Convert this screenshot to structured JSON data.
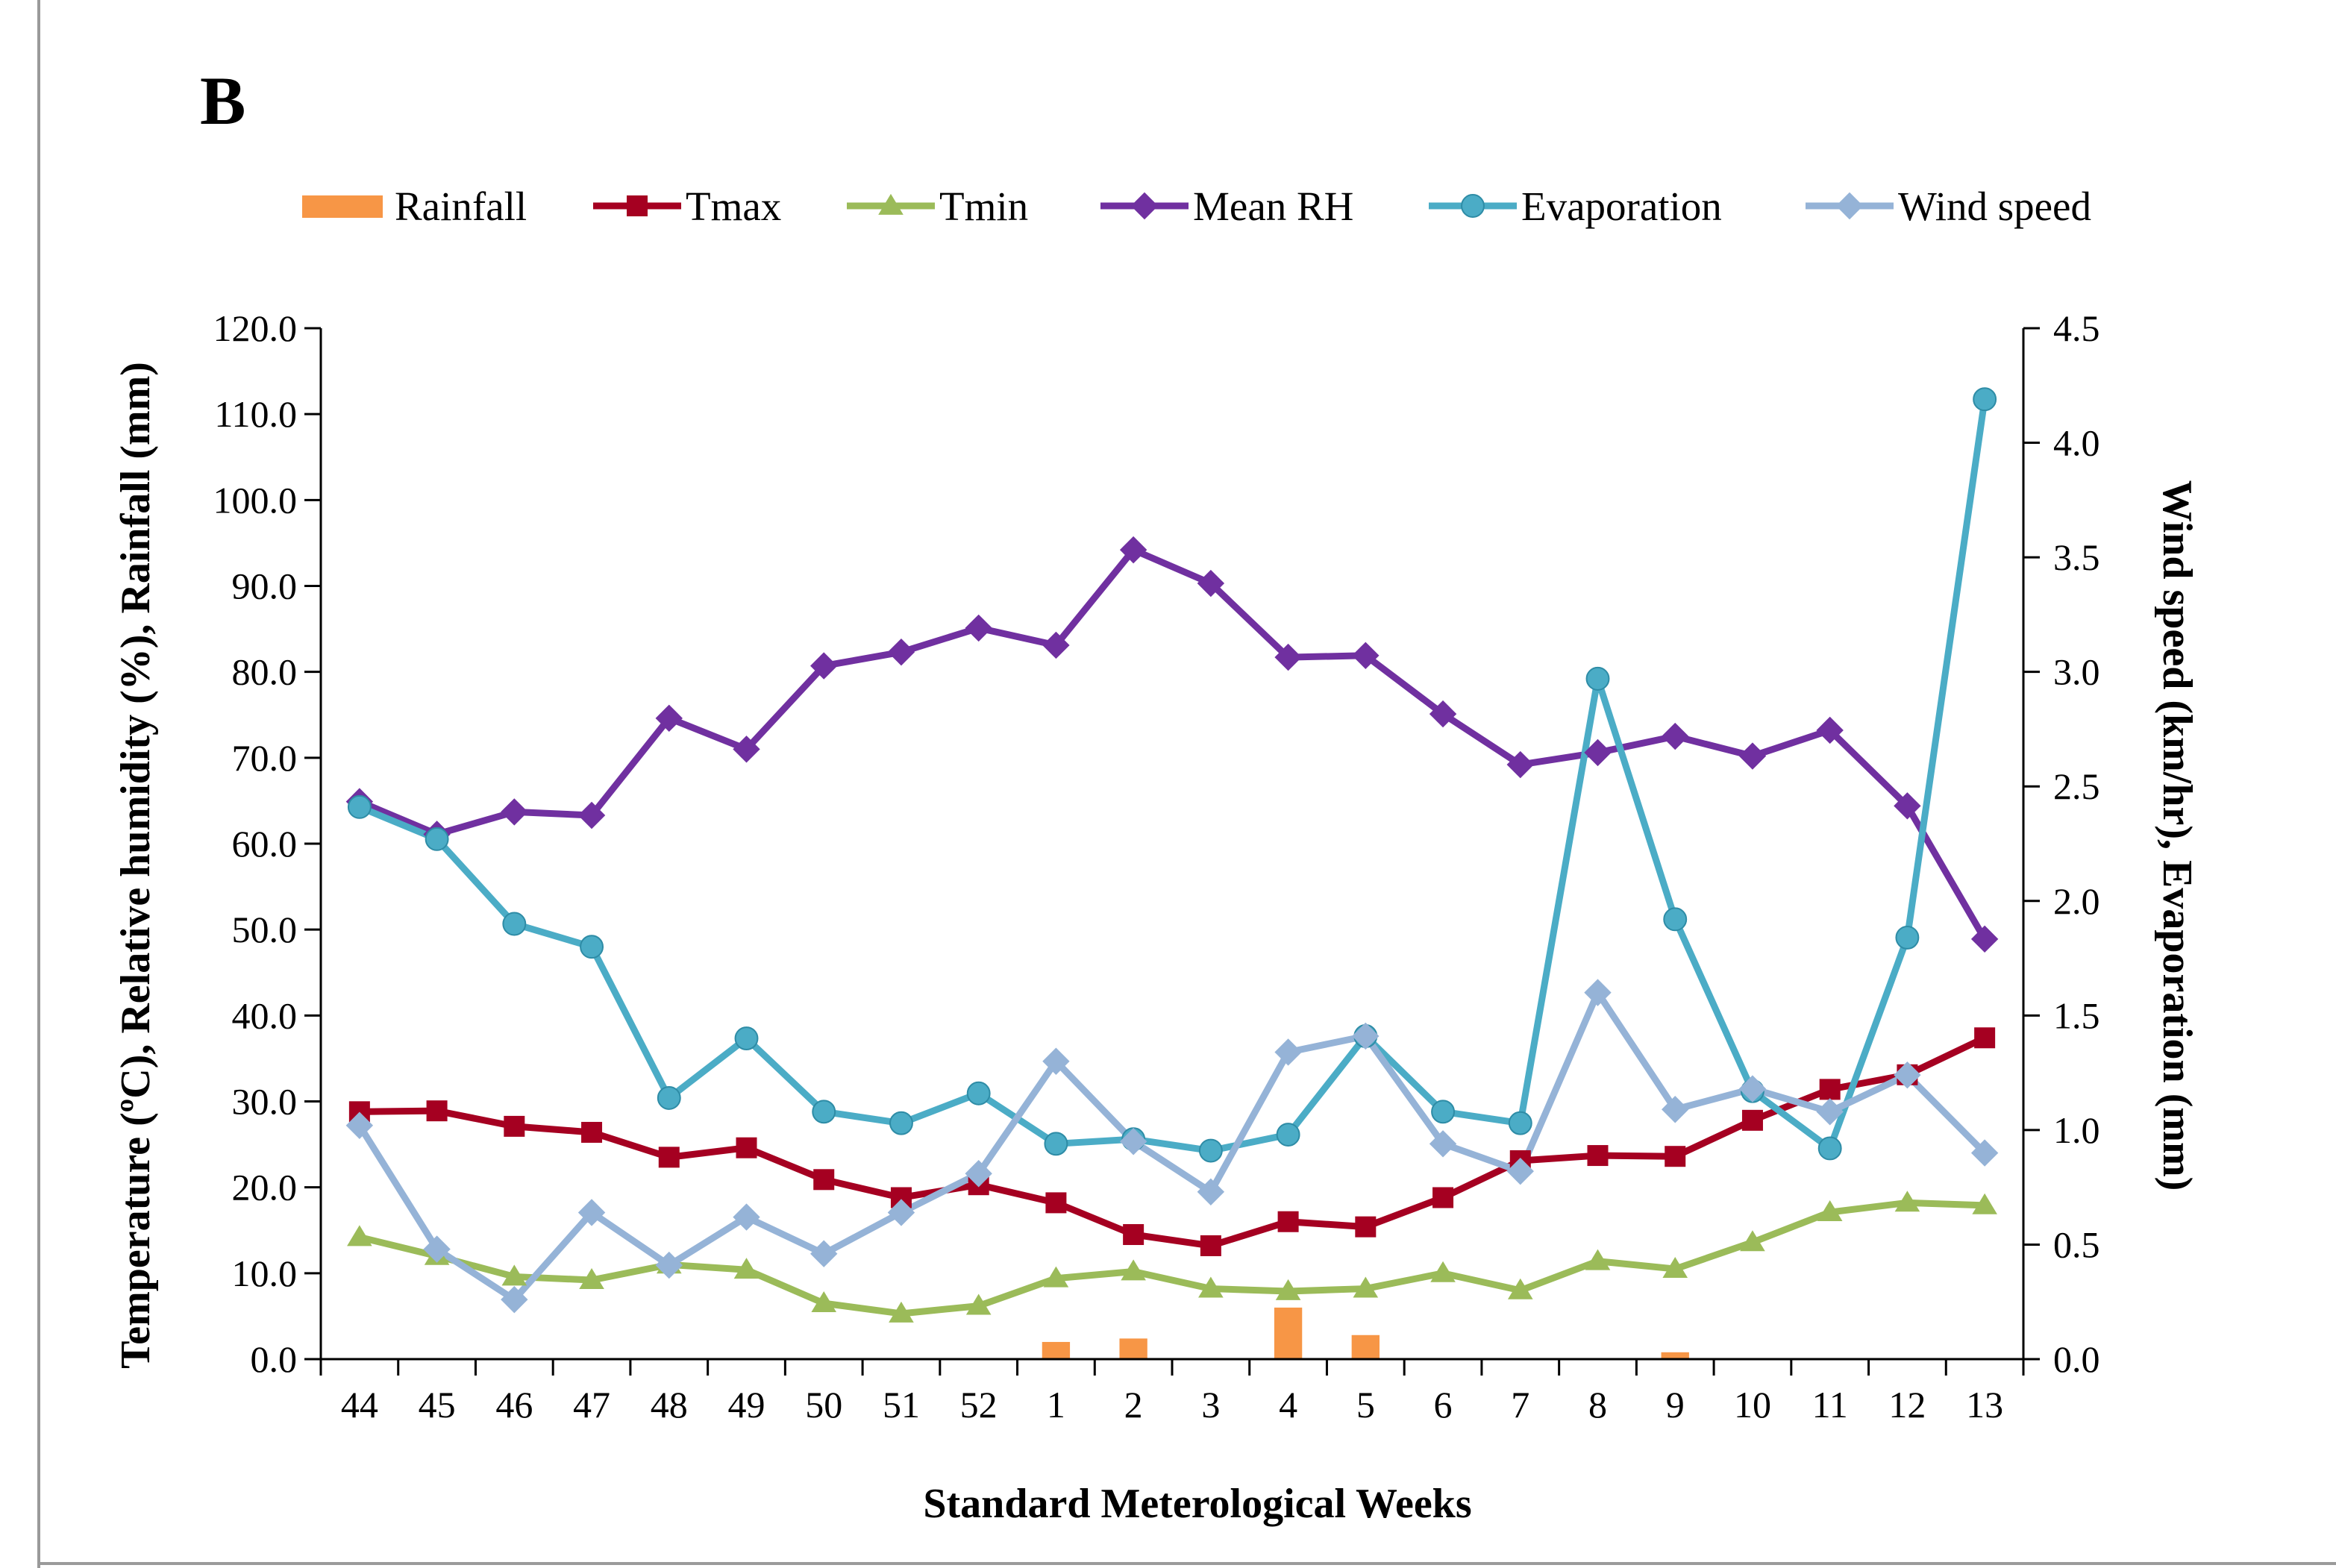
{
  "chart_data": {
    "type": "line",
    "panel_label": "B",
    "xlabel": "Standard Meterological Weeks",
    "ylabel_left": "Temperature (ºC), Relative humidity (%), Rainfall (mm)",
    "ylabel_right": "Wind speed (km/hr), Evaporation (mm)",
    "ylim_left": [
      0,
      120
    ],
    "ylim_right": [
      0,
      4.5
    ],
    "yticks_left": [
      "0.0",
      "10.0",
      "20.0",
      "30.0",
      "40.0",
      "50.0",
      "60.0",
      "70.0",
      "80.0",
      "90.0",
      "100.0",
      "110.0",
      "120.0"
    ],
    "yticks_right": [
      "0.0",
      "0.5",
      "1.0",
      "1.5",
      "2.0",
      "2.5",
      "3.0",
      "3.5",
      "4.0",
      "4.5"
    ],
    "categories": [
      "44",
      "45",
      "46",
      "47",
      "48",
      "49",
      "50",
      "51",
      "52",
      "1",
      "2",
      "3",
      "4",
      "5",
      "6",
      "7",
      "8",
      "9",
      "10",
      "11",
      "12",
      "13"
    ],
    "legend_position": "top",
    "series": [
      {
        "name": "Rainfall",
        "kind": "bar",
        "axis": "left",
        "color": "#F79646",
        "values": [
          0,
          0,
          0,
          0,
          0,
          0,
          0,
          0,
          0,
          2.0,
          2.4,
          0,
          6.0,
          2.8,
          0,
          0,
          0,
          0.8,
          0,
          0,
          0,
          0
        ]
      },
      {
        "name": "Tmax",
        "kind": "line",
        "axis": "left",
        "color": "#A50021",
        "marker": "square",
        "values": [
          28.8,
          28.9,
          27.1,
          26.4,
          23.5,
          24.6,
          20.9,
          18.8,
          20.3,
          18.2,
          14.5,
          13.2,
          16.0,
          15.4,
          18.8,
          23.1,
          23.7,
          23.6,
          27.8,
          31.4,
          33.1,
          37.4
        ]
      },
      {
        "name": "Tmin",
        "kind": "line",
        "axis": "left",
        "color": "#9BBB59",
        "marker": "triangle",
        "values": [
          14.2,
          12.0,
          9.6,
          9.2,
          11.0,
          10.4,
          6.5,
          5.3,
          6.2,
          9.4,
          10.2,
          8.2,
          7.9,
          8.2,
          10.0,
          8.0,
          11.4,
          10.5,
          13.6,
          17.1,
          18.2,
          17.9
        ]
      },
      {
        "name": "Mean RH",
        "kind": "line",
        "axis": "left",
        "color": "#7030A0",
        "marker": "diamond",
        "values": [
          64.9,
          61.1,
          63.7,
          63.3,
          74.6,
          71.0,
          80.7,
          82.3,
          85.1,
          83.1,
          94.2,
          90.3,
          81.7,
          81.9,
          75.1,
          69.2,
          70.6,
          72.5,
          70.2,
          73.2,
          64.4,
          48.9
        ]
      },
      {
        "name": "Evaporation",
        "kind": "line",
        "axis": "right",
        "color": "#4BACC6",
        "marker": "circle",
        "values": [
          2.41,
          2.27,
          1.9,
          1.8,
          1.14,
          1.4,
          1.08,
          1.03,
          1.16,
          0.94,
          0.96,
          0.91,
          0.98,
          1.41,
          1.08,
          1.03,
          2.97,
          1.92,
          1.17,
          0.92,
          1.84,
          4.19
        ]
      },
      {
        "name": "Wind speed",
        "kind": "line",
        "axis": "right",
        "color": "#95B3D7",
        "marker": "diamond",
        "values": [
          1.02,
          0.48,
          0.26,
          0.64,
          0.41,
          0.62,
          0.46,
          0.64,
          0.81,
          1.3,
          0.95,
          0.73,
          1.34,
          1.41,
          0.94,
          0.82,
          1.6,
          1.09,
          1.18,
          1.08,
          1.24,
          0.9
        ]
      }
    ]
  }
}
